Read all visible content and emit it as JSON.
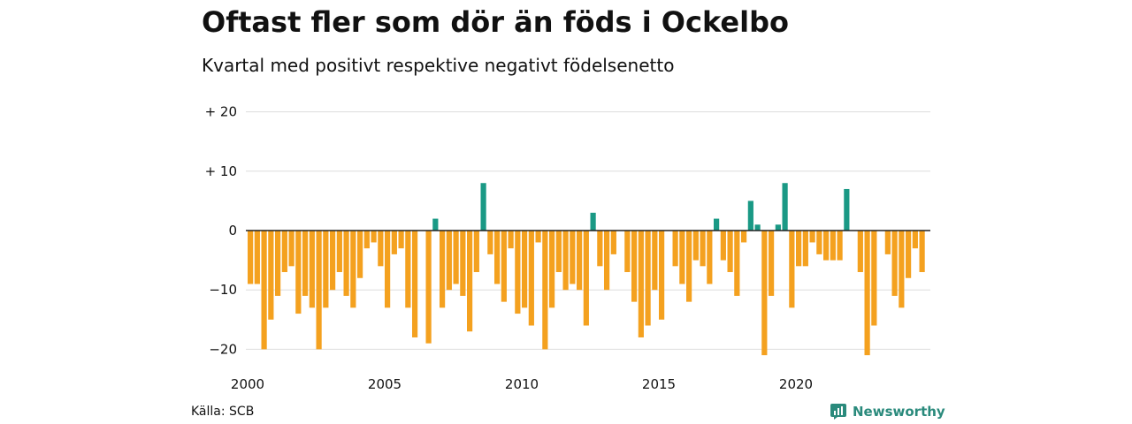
{
  "header": {
    "title": "Oftast fler som dör än föds i Ockelbo",
    "subtitle": "Kvartal med positivt respektive negativt födelsenetto"
  },
  "footer": {
    "source": "Källa: SCB",
    "brand": "Newsworthy"
  },
  "colors": {
    "negative": "#f4a11f",
    "positive": "#1a9985",
    "grid": "#dddddd",
    "zero_line": "#222222",
    "brand": "#2a8a7c"
  },
  "chart_data": {
    "type": "bar",
    "title": "Oftast fler som dör än föds i Ockelbo",
    "subtitle": "Kvartal med positivt respektive negativt födelsenetto",
    "xlabel": "",
    "ylabel": "",
    "ylim": [
      -22,
      20
    ],
    "y_ticks": [
      {
        "value": 20,
        "label": "+ 20"
      },
      {
        "value": 10,
        "label": "+ 10"
      },
      {
        "value": 0,
        "label": "0"
      },
      {
        "value": -10,
        "label": "−10"
      },
      {
        "value": -20,
        "label": "−20"
      }
    ],
    "x_ticks": [
      {
        "year": 2000,
        "label": "2000"
      },
      {
        "year": 2005,
        "label": "2005"
      },
      {
        "year": 2010,
        "label": "2010"
      },
      {
        "year": 2015,
        "label": "2015"
      },
      {
        "year": 2020,
        "label": "2020"
      }
    ],
    "start": "2000 Q1",
    "grid": true,
    "values": [
      -9,
      -9,
      -20,
      -15,
      -11,
      -7,
      -6,
      -14,
      -11,
      -13,
      -20,
      -13,
      -10,
      -7,
      -11,
      -13,
      -8,
      -3,
      -2,
      -6,
      -13,
      -4,
      -3,
      -13,
      -18,
      0,
      -19,
      2,
      -13,
      -10,
      -9,
      -11,
      -17,
      -7,
      8,
      -4,
      -9,
      -12,
      -3,
      -14,
      -13,
      -16,
      -2,
      -20,
      -13,
      -7,
      -10,
      -9,
      -10,
      -16,
      3,
      -6,
      -10,
      -4,
      0,
      -7,
      -12,
      -18,
      -16,
      -10,
      -15,
      0,
      -6,
      -9,
      -12,
      -5,
      -6,
      -9,
      2,
      -5,
      -7,
      -11,
      -2,
      5,
      1,
      -21,
      -11,
      1,
      8,
      -13,
      -6,
      -6,
      -2,
      -4,
      -5,
      -5,
      -5,
      7,
      0,
      -7,
      -21,
      -16,
      0,
      -4,
      -11,
      -13,
      -8,
      -3,
      -7
    ]
  }
}
